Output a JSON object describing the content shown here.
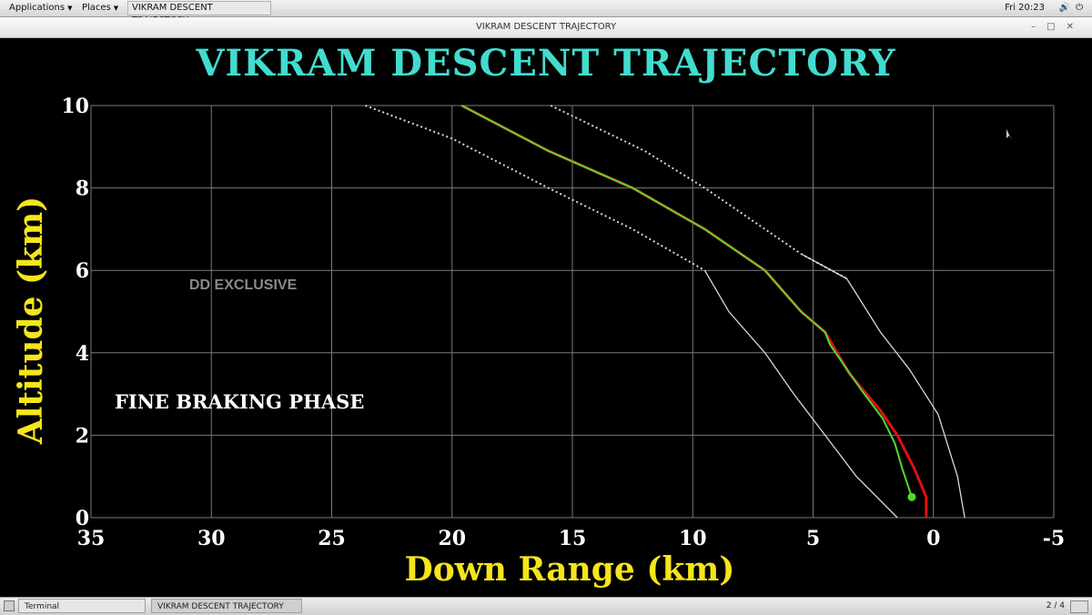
{
  "top_panel": {
    "applications_label": "Applications",
    "places_label": "Places",
    "active_task_label": "VIKRAM DESCENT TRAJECTORY",
    "clock": "Fri 20:23"
  },
  "window": {
    "title": "VIKRAM DESCENT TRAJECTORY"
  },
  "overlays": {
    "watermark": "DD EXCLUSIVE",
    "phase_label": "FINE BRAKING PHASE"
  },
  "taskbar": {
    "terminal_label": "Terminal",
    "trajectory_label": "VIKRAM DESCENT TRAJECTORY",
    "workspace": "2 / 4"
  },
  "colors": {
    "title": "#42dccf",
    "axis_labels": "#f5e51a",
    "planned": "#e01010",
    "actual": "#4ddc2a",
    "bounds": "#d8d8d8",
    "grid": "#7a7a7a"
  },
  "chart_data": {
    "type": "line",
    "title": "VIKRAM DESCENT TRAJECTORY",
    "xlabel": "Down Range (km)",
    "ylabel": "Altitude (km)",
    "xlim": [
      35,
      -5
    ],
    "ylim": [
      0,
      10
    ],
    "x_ticks": [
      "35",
      "30",
      "25",
      "20",
      "15",
      "10",
      "5",
      "0",
      "-5"
    ],
    "y_ticks": [
      "0",
      "2",
      "4",
      "6",
      "8",
      "10"
    ],
    "grid": true,
    "series": [
      {
        "id": "planned",
        "style": "solid",
        "color": "#e01010",
        "points": [
          [
            19.6,
            10
          ],
          [
            16,
            8.9
          ],
          [
            12.5,
            8
          ],
          [
            9.5,
            7
          ],
          [
            7,
            6
          ],
          [
            5.5,
            5
          ],
          [
            4.5,
            4.5
          ],
          [
            3.5,
            3.5
          ],
          [
            2.2,
            2.6
          ],
          [
            1.5,
            2
          ],
          [
            0.8,
            1.2
          ],
          [
            0.3,
            0.5
          ],
          [
            0.3,
            0
          ]
        ]
      },
      {
        "id": "actual",
        "style": "solid",
        "color": "#4ddc2a",
        "points": [
          [
            19.6,
            10
          ],
          [
            16,
            8.9
          ],
          [
            12.5,
            8
          ],
          [
            9.5,
            7
          ],
          [
            7,
            6
          ],
          [
            5.5,
            5
          ],
          [
            4.5,
            4.5
          ],
          [
            4.3,
            4.2
          ],
          [
            3,
            3.1
          ],
          [
            2.1,
            2.4
          ],
          [
            1.6,
            1.8
          ],
          [
            1.3,
            1.2
          ],
          [
            0.9,
            0.5
          ]
        ]
      },
      {
        "id": "outer-bound",
        "style": "dotted-then-solid",
        "color": "#d8d8d8",
        "points": [
          [
            23.6,
            10
          ],
          [
            20,
            9.2
          ],
          [
            16,
            8
          ],
          [
            12.5,
            7
          ],
          [
            9.5,
            6
          ],
          [
            8.5,
            5
          ],
          [
            7,
            4
          ],
          [
            5.8,
            3
          ],
          [
            4.5,
            2
          ],
          [
            3.2,
            1
          ],
          [
            1.5,
            0
          ]
        ]
      },
      {
        "id": "inner-bound",
        "style": "dotted-then-solid",
        "color": "#d8d8d8",
        "points": [
          [
            15.9,
            10
          ],
          [
            12,
            8.9
          ],
          [
            9.5,
            8
          ],
          [
            7,
            7
          ],
          [
            5.5,
            6.4
          ],
          [
            3.6,
            5.8
          ],
          [
            2.2,
            4.5
          ],
          [
            1,
            3.6
          ],
          [
            -0.2,
            2.5
          ],
          [
            -1,
            1
          ],
          [
            -1.3,
            0
          ]
        ]
      }
    ],
    "annotations": [
      {
        "label": "lander-position",
        "x": 0.9,
        "y": 0.5
      }
    ]
  }
}
